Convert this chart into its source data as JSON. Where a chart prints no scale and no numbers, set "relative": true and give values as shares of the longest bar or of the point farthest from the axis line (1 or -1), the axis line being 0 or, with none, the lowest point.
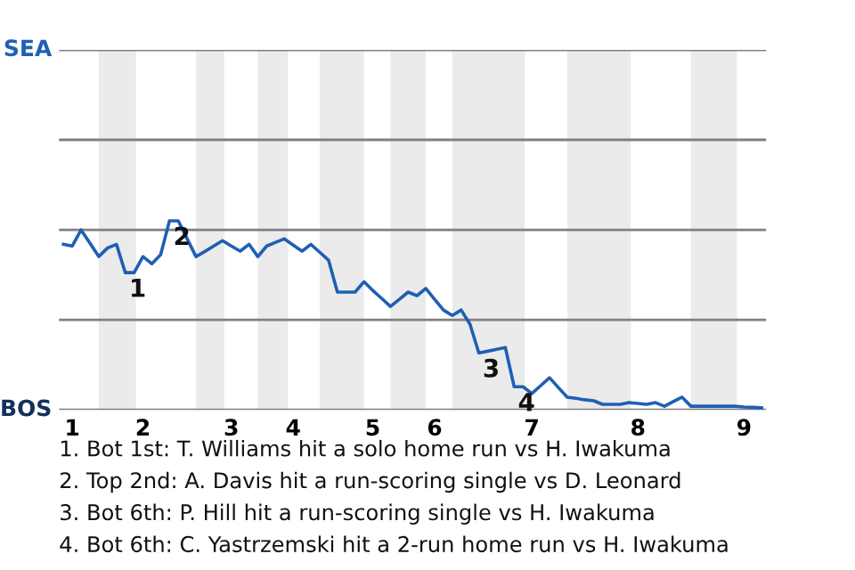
{
  "chart_data": {
    "type": "line",
    "categories": [
      null,
      "1",
      null,
      null,
      null,
      null,
      null,
      null,
      null,
      "2",
      null,
      null,
      null,
      null,
      null,
      null,
      null,
      null,
      null,
      "3",
      null,
      null,
      null,
      null,
      null,
      null,
      "4",
      null,
      null,
      null,
      null,
      null,
      null,
      null,
      null,
      "5",
      null,
      null,
      null,
      null,
      null,
      null,
      "6",
      null,
      null,
      null,
      null,
      null,
      null,
      null,
      null,
      null,
      null,
      "7",
      null,
      null,
      null,
      null,
      null,
      null,
      null,
      null,
      null,
      null,
      null,
      "8",
      null,
      null,
      null,
      null,
      null,
      null,
      null,
      null,
      null,
      null,
      null,
      "9",
      null,
      null
    ],
    "relative": true,
    "series": [
      {
        "color": "#1f5fb4",
        "values": [
          0.876,
          0.867,
          0.952,
          0.882,
          0.811,
          0.857,
          0.876,
          0.726,
          0.726,
          0.811,
          0.773,
          0.821,
          1,
          1,
          0.905,
          0.811,
          0.838,
          0.867,
          0.895,
          0.867,
          0.84,
          0.876,
          0.811,
          0.867,
          0.886,
          0.905,
          0.872,
          0.84,
          0.876,
          0.834,
          0.792,
          0.623,
          0.623,
          0.623,
          0.678,
          0.632,
          0.59,
          0.547,
          0.585,
          0.623,
          0.604,
          0.642,
          0.585,
          0.528,
          0.499,
          0.528,
          0.453,
          0.301,
          0.31,
          0.32,
          0.33,
          0.122,
          0.122,
          0.086,
          0.128,
          0.17,
          0.118,
          0.067,
          0.061,
          0.053,
          0.048,
          0.029,
          0.029,
          0.029,
          0.038,
          0.034,
          0.029,
          0.038,
          0.019,
          0.044,
          0.067,
          0.019,
          0.019,
          0.019,
          0.019,
          0.019,
          0.019,
          0.015,
          0.013,
          0.01
        ]
      }
    ],
    "ref_lines": [
      {
        "axis": "y",
        "value": 0,
        "label": "BOS"
      },
      {
        "axis": "y",
        "value": 0.476,
        "label": null
      },
      {
        "axis": "y",
        "value": 0.952,
        "label": null
      },
      {
        "axis": "y",
        "value": 1.429,
        "label": null
      },
      {
        "axis": "y",
        "value": 1.905,
        "label": "SEA"
      }
    ],
    "annotations": [
      {
        "text": "1",
        "y": 0.726
      },
      {
        "text": "2",
        "y": 1
      },
      {
        "text": "3",
        "y": 0.301
      },
      {
        "text": "4",
        "y": 0.122
      },
      "1. Bot 1st: T. Williams hit a solo home run vs H. Iwakuma",
      "2. Top 2nd: A. Davis hit a run-scoring single vs D. Leonard",
      "3. Bot 6th: P. Hill hit a run-scoring single vs H. Iwakuma",
      "4. Bot 6th: C. Yastrzemski hit a 2-run home run vs H. Iwakuma"
    ],
    "marker": "none",
    "line_style": "solid"
  }
}
